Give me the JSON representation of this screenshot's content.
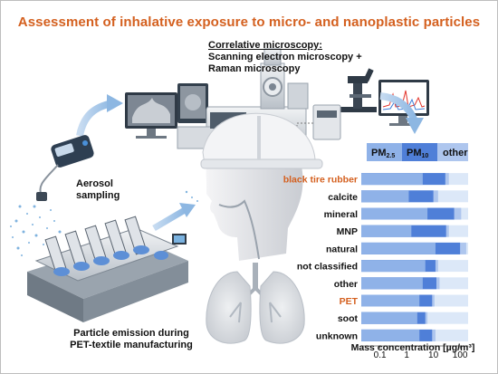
{
  "title": "Assessment of inhalative exposure to micro- and nanoplastic particles",
  "microscopy": {
    "line1": "Correlative microscopy:",
    "line2": "Scanning electron microscopy +",
    "line3": "Raman microscopy"
  },
  "aerosol": {
    "line1": "Aerosol",
    "line2": "sampling"
  },
  "emission": {
    "line1": "Particle emission during",
    "line2": "PET-textile manufacturing"
  },
  "colors": {
    "title": "#d4601f",
    "accent_category": "#d4601f",
    "pm25": "#8fb2e8",
    "pm10": "#4f7fd8",
    "other": "#aec6ee",
    "row_band": "#dce8f8",
    "arrow": "#9cc2e6"
  },
  "chart_data": {
    "type": "bar",
    "orientation": "horizontal",
    "stacked": true,
    "xscale": "log",
    "xlim": [
      0.02,
      200
    ],
    "xticks": [
      "0.1",
      "1",
      "10",
      "100"
    ],
    "xlabel": "Mass concentration [µg/m³]",
    "legend": [
      "PM2.5",
      "PM10",
      "other"
    ],
    "legend_parts": {
      "pm": "PM",
      "sub25": "2.5",
      "sub10": "10",
      "other": "other"
    },
    "legend_placement": "top",
    "categories": [
      "black tire rubber",
      "calcite",
      "mineral",
      "MNP",
      "natural",
      "not classified",
      "other",
      "PET",
      "soot",
      "unknown"
    ],
    "accent_categories": [
      "black tire rubber",
      "PET"
    ],
    "series": [
      {
        "name": "PM2.5",
        "values": [
          4,
          1.2,
          6,
          1.5,
          12,
          5,
          4,
          3,
          2.5,
          3
        ]
      },
      {
        "name": "PM10",
        "values": [
          28,
          10,
          60,
          30,
          100,
          12,
          13,
          9,
          5,
          9
        ]
      },
      {
        "name": "other",
        "values": [
          38,
          15,
          110,
          38,
          170,
          15,
          17,
          11,
          6,
          12
        ]
      }
    ]
  }
}
